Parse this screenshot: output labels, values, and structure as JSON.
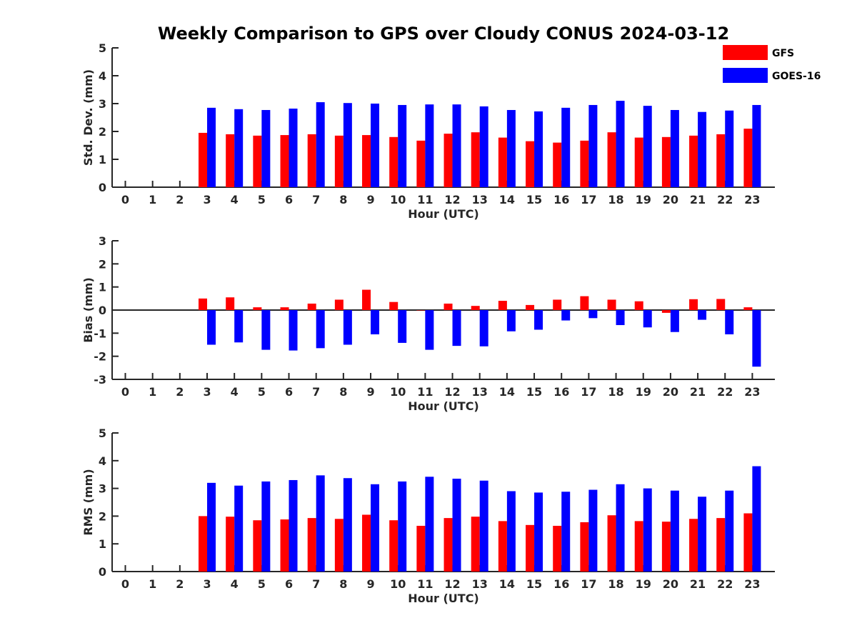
{
  "title": "Weekly Comparison to GPS over Cloudy CONUS 2024-03-12",
  "colors": {
    "GFS": "#ff0000",
    "GOES-16": "#0000ff"
  },
  "legend": {
    "placement": "top-right",
    "entries": [
      "GFS",
      "GOES-16"
    ]
  },
  "chart_data": [
    {
      "type": "bar",
      "xlabel": "Hour (UTC)",
      "ylabel": "Std. Dev. (mm)",
      "ylim": [
        0,
        5
      ],
      "yticks": [
        "0",
        "1",
        "2",
        "3",
        "4",
        "5"
      ],
      "categories": [
        "0",
        "1",
        "2",
        "3",
        "4",
        "5",
        "6",
        "7",
        "8",
        "9",
        "10",
        "11",
        "12",
        "13",
        "14",
        "15",
        "16",
        "17",
        "18",
        "19",
        "20",
        "21",
        "22",
        "23"
      ],
      "series": [
        {
          "name": "GFS",
          "values": [
            null,
            null,
            null,
            1.95,
            1.9,
            1.85,
            1.87,
            1.9,
            1.85,
            1.87,
            1.8,
            1.67,
            1.92,
            1.97,
            1.78,
            1.65,
            1.6,
            1.67,
            1.97,
            1.78,
            1.8,
            1.85,
            1.9,
            2.1
          ]
        },
        {
          "name": "GOES-16",
          "values": [
            null,
            null,
            null,
            2.85,
            2.8,
            2.77,
            2.82,
            3.05,
            3.02,
            3.0,
            2.95,
            2.97,
            2.97,
            2.9,
            2.77,
            2.72,
            2.85,
            2.95,
            3.1,
            2.92,
            2.77,
            2.7,
            2.75,
            2.95
          ]
        }
      ]
    },
    {
      "type": "bar",
      "xlabel": "Hour (UTC)",
      "ylabel": "Bias (mm)",
      "ylim": [
        -3,
        3
      ],
      "yticks": [
        "-3",
        "-2",
        "-1",
        "0",
        "1",
        "2",
        "3"
      ],
      "categories": [
        "0",
        "1",
        "2",
        "3",
        "4",
        "5",
        "6",
        "7",
        "8",
        "9",
        "10",
        "11",
        "12",
        "13",
        "14",
        "15",
        "16",
        "17",
        "18",
        "19",
        "20",
        "21",
        "22",
        "23"
      ],
      "series": [
        {
          "name": "GFS",
          "values": [
            null,
            null,
            null,
            0.5,
            0.55,
            0.12,
            0.12,
            0.28,
            0.45,
            0.88,
            0.35,
            0.0,
            0.28,
            0.18,
            0.4,
            0.22,
            0.45,
            0.6,
            0.45,
            0.38,
            -0.12,
            0.47,
            0.48,
            0.12
          ]
        },
        {
          "name": "GOES-16",
          "values": [
            null,
            null,
            null,
            -1.5,
            -1.4,
            -1.72,
            -1.75,
            -1.65,
            -1.5,
            -1.05,
            -1.42,
            -1.72,
            -1.55,
            -1.57,
            -0.92,
            -0.85,
            -0.45,
            -0.35,
            -0.65,
            -0.75,
            -0.95,
            -0.42,
            -1.05,
            -2.45
          ]
        }
      ]
    },
    {
      "type": "bar",
      "xlabel": "Hour (UTC)",
      "ylabel": "RMS (mm)",
      "ylim": [
        0,
        5
      ],
      "yticks": [
        "0",
        "1",
        "2",
        "3",
        "4",
        "5"
      ],
      "categories": [
        "0",
        "1",
        "2",
        "3",
        "4",
        "5",
        "6",
        "7",
        "8",
        "9",
        "10",
        "11",
        "12",
        "13",
        "14",
        "15",
        "16",
        "17",
        "18",
        "19",
        "20",
        "21",
        "22",
        "23"
      ],
      "series": [
        {
          "name": "GFS",
          "values": [
            null,
            null,
            null,
            2.0,
            1.98,
            1.85,
            1.88,
            1.93,
            1.9,
            2.05,
            1.85,
            1.65,
            1.93,
            1.98,
            1.82,
            1.68,
            1.65,
            1.78,
            2.03,
            1.82,
            1.8,
            1.9,
            1.93,
            2.1
          ]
        },
        {
          "name": "GOES-16",
          "values": [
            null,
            null,
            null,
            3.2,
            3.1,
            3.25,
            3.3,
            3.47,
            3.37,
            3.15,
            3.25,
            3.42,
            3.35,
            3.28,
            2.9,
            2.85,
            2.88,
            2.95,
            3.15,
            3.0,
            2.92,
            2.7,
            2.92,
            3.8
          ]
        }
      ]
    }
  ]
}
